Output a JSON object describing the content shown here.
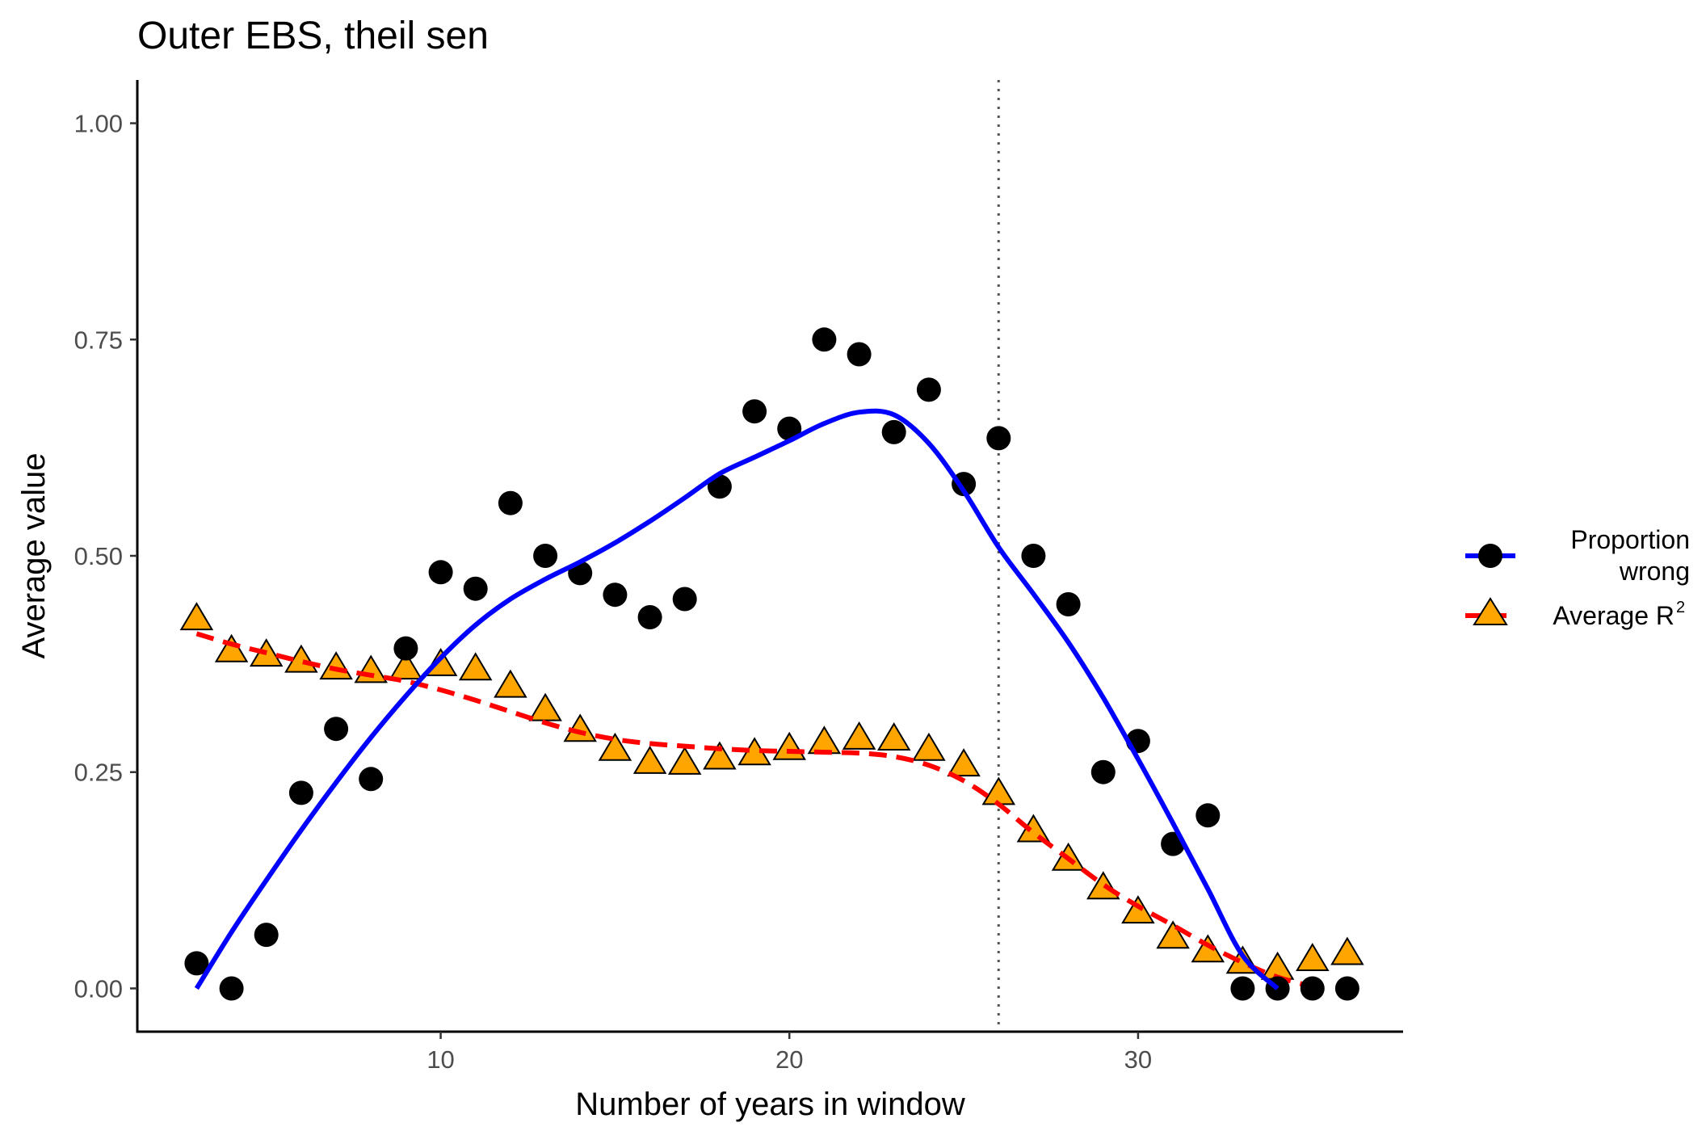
{
  "chart_data": {
    "type": "scatter",
    "title": "Outer EBS, theil sen",
    "xlabel": "Number of years in window",
    "ylabel": "Average value",
    "xlim": [
      1.3,
      37.6
    ],
    "ylim": [
      -0.05,
      1.05
    ],
    "x_ticks": [
      10,
      20,
      30
    ],
    "x_tick_labels": [
      "10",
      "20",
      "30"
    ],
    "y_ticks": [
      0,
      0.25,
      0.5,
      0.75,
      1
    ],
    "y_tick_labels": [
      "0.00",
      "0.25",
      "0.50",
      "0.75",
      "1.00"
    ],
    "grid": false,
    "legend_position": "right",
    "vline": {
      "x": 26,
      "style": "dotted",
      "color": "#555555"
    },
    "series": [
      {
        "name": "Proportion wrong",
        "legend_lines": [
          "Proportion",
          "wrong"
        ],
        "marker": "circle",
        "marker_color": "#000000",
        "line_color": "#0000ff",
        "line_style": "solid",
        "x": [
          3,
          4,
          5,
          6,
          7,
          8,
          9,
          10,
          11,
          12,
          13,
          14,
          15,
          16,
          17,
          18,
          19,
          20,
          21,
          22,
          23,
          24,
          25,
          26,
          27,
          28,
          29,
          30,
          31,
          32,
          33,
          34,
          35,
          36
        ],
        "values": [
          0.029,
          0.0,
          0.062,
          0.226,
          0.3,
          0.242,
          0.393,
          0.481,
          0.462,
          0.561,
          0.5,
          0.48,
          0.455,
          0.429,
          0.45,
          0.58,
          0.667,
          0.647,
          0.75,
          0.733,
          0.643,
          0.692,
          0.583,
          0.636,
          0.5,
          0.444,
          0.25,
          0.286,
          0.167,
          0.2,
          0.0,
          0.0,
          0.0,
          0.0
        ],
        "smooth": {
          "x": [
            3,
            4,
            5,
            6,
            7,
            8,
            9,
            10,
            11,
            12,
            13,
            14,
            15,
            16,
            17,
            18,
            19,
            20,
            21,
            22,
            23,
            24,
            25,
            26,
            27,
            28,
            29,
            30,
            31,
            32,
            33,
            34
          ],
          "values": [
            0.0,
            0.065,
            0.125,
            0.183,
            0.238,
            0.29,
            0.338,
            0.382,
            0.42,
            0.45,
            0.473,
            0.493,
            0.515,
            0.54,
            0.567,
            0.595,
            0.614,
            0.633,
            0.653,
            0.666,
            0.663,
            0.63,
            0.575,
            0.51,
            0.456,
            0.4,
            0.336,
            0.265,
            0.191,
            0.115,
            0.038,
            0.0
          ]
        }
      },
      {
        "name": "Average R2",
        "legend_text": "Average R",
        "legend_superscript": "2",
        "marker": "triangle",
        "marker_color": "#ffa500",
        "line_color": "#ff0000",
        "line_style": "dashed",
        "x": [
          3,
          4,
          5,
          6,
          7,
          8,
          9,
          10,
          11,
          12,
          13,
          14,
          15,
          16,
          17,
          18,
          19,
          20,
          21,
          22,
          23,
          24,
          25,
          26,
          27,
          28,
          29,
          30,
          31,
          32,
          33,
          34,
          35,
          36
        ],
        "values": [
          0.428,
          0.391,
          0.386,
          0.379,
          0.371,
          0.367,
          0.371,
          0.375,
          0.37,
          0.35,
          0.323,
          0.299,
          0.277,
          0.262,
          0.261,
          0.267,
          0.272,
          0.278,
          0.285,
          0.29,
          0.289,
          0.277,
          0.259,
          0.226,
          0.183,
          0.15,
          0.117,
          0.089,
          0.06,
          0.044,
          0.031,
          0.024,
          0.034,
          0.041
        ],
        "smooth": {
          "x": [
            3,
            4,
            5,
            6,
            7,
            8,
            9,
            10,
            11,
            12,
            13,
            14,
            15,
            16,
            17,
            18,
            19,
            20,
            21,
            22,
            23,
            24,
            25,
            26,
            27,
            28,
            29,
            30,
            31,
            32,
            33,
            34,
            35
          ],
          "values": [
            0.41,
            0.398,
            0.388,
            0.378,
            0.369,
            0.362,
            0.355,
            0.345,
            0.333,
            0.32,
            0.307,
            0.296,
            0.288,
            0.283,
            0.28,
            0.277,
            0.275,
            0.274,
            0.273,
            0.272,
            0.268,
            0.258,
            0.24,
            0.213,
            0.18,
            0.15,
            0.12,
            0.095,
            0.073,
            0.05,
            0.03,
            0.013,
            0.002
          ]
        }
      }
    ]
  }
}
